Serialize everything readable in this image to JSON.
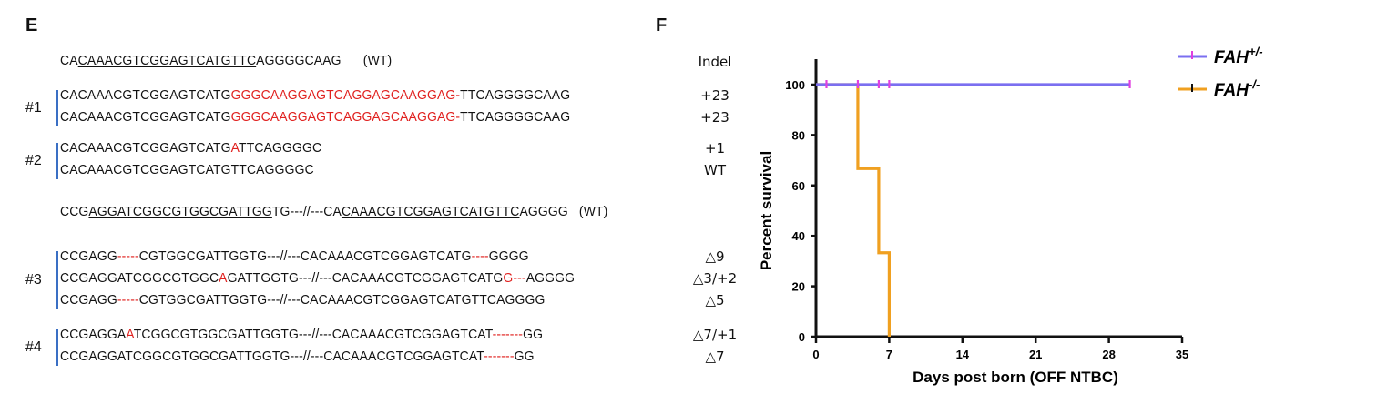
{
  "panels": {
    "left_letter": "E",
    "right_letter": "F"
  },
  "indel_header": "Indel",
  "ref1": [
    {
      "t": "CA",
      "s": ""
    },
    {
      "t": "CAAACGTCGGAGTCATGTTC",
      "s": "u"
    },
    {
      "t": "AGGGGCAAG",
      "s": ""
    },
    {
      "t": "      (WT)",
      "s": ""
    }
  ],
  "ref2": [
    {
      "t": "CCG",
      "s": ""
    },
    {
      "t": "AGGATCGGCGTGGCGATTGG",
      "s": "u"
    },
    {
      "t": "TG---//---CA",
      "s": ""
    },
    {
      "t": "CAAACGTCGGAGTCATGTTC",
      "s": "u"
    },
    {
      "t": "AGGGG   (WT)",
      "s": ""
    }
  ],
  "clones": [
    {
      "label": "#1",
      "rows": [
        {
          "indel": "+23",
          "parts": [
            {
              "t": "CACAAACGTCGGAGTCATG",
              "s": ""
            },
            {
              "t": "GGGCAAGGAGTCAGGAGCAAGGAG-",
              "s": "red"
            },
            {
              "t": "TTCAGGGGCAAG",
              "s": ""
            }
          ]
        },
        {
          "indel": "+23",
          "parts": [
            {
              "t": "CACAAACGTCGGAGTCATG",
              "s": ""
            },
            {
              "t": "GGGCAAGGAGTCAGGAGCAAGGAG-",
              "s": "red"
            },
            {
              "t": "TTCAGGGGCAAG",
              "s": ""
            }
          ]
        }
      ]
    },
    {
      "label": "#2",
      "rows": [
        {
          "indel": "+1",
          "parts": [
            {
              "t": "CACAAACGTCGGAGTCATG",
              "s": ""
            },
            {
              "t": "A",
              "s": "red"
            },
            {
              "t": "TTCAGGGGC",
              "s": ""
            }
          ]
        },
        {
          "indel": "WT",
          "parts": [
            {
              "t": "CACAAACGTCGGAGTCATGTTCAGGGGC",
              "s": ""
            }
          ]
        }
      ]
    },
    {
      "label": "#3",
      "rows": [
        {
          "indel": "△9",
          "parts": [
            {
              "t": "CCGAGG",
              "s": ""
            },
            {
              "t": "-----",
              "s": "red"
            },
            {
              "t": "CGTGGCGATTGGTG---//---CACAAACGTCGGAGTCATG",
              "s": ""
            },
            {
              "t": "----",
              "s": "red"
            },
            {
              "t": "GGGG",
              "s": ""
            }
          ]
        },
        {
          "indel": "△3/+2",
          "parts": [
            {
              "t": "CCGAGGATCGGCGTGGC",
              "s": ""
            },
            {
              "t": "A",
              "s": "red"
            },
            {
              "t": "GATTGGTG---//---CACAAACGTCGGAGTCATG",
              "s": ""
            },
            {
              "t": "G---",
              "s": "red"
            },
            {
              "t": "AGGGG",
              "s": ""
            }
          ]
        },
        {
          "indel": "△5",
          "parts": [
            {
              "t": "CCGAGG",
              "s": ""
            },
            {
              "t": "-----",
              "s": "red"
            },
            {
              "t": "CGTGGCGATTGGTG---//---CACAAACGTCGGAGTCATGTTCAGGGG",
              "s": ""
            }
          ]
        }
      ]
    },
    {
      "label": "#4",
      "rows": [
        {
          "indel": "△7/+1",
          "parts": [
            {
              "t": "CCGAGGA",
              "s": ""
            },
            {
              "t": "A",
              "s": "red"
            },
            {
              "t": "TCGGCGTGGCGATTGGTG---//---CACAAACGTCGGAGTCAT",
              "s": ""
            },
            {
              "t": "-------",
              "s": "red"
            },
            {
              "t": "GG",
              "s": ""
            }
          ]
        },
        {
          "indel": "△7",
          "parts": [
            {
              "t": "CCGAGGATCGGCGTGGCGATTGGTG---//---CACAAACGTCGGAGTCAT",
              "s": ""
            },
            {
              "t": "-------",
              "s": "red"
            },
            {
              "t": "GG",
              "s": ""
            }
          ]
        }
      ]
    }
  ],
  "chart_data": {
    "type": "line",
    "title": "",
    "xlabel": "Days post born (OFF NTBC)",
    "ylabel": "Percent survival",
    "xlim": [
      0,
      35
    ],
    "ylim": [
      0,
      100
    ],
    "xticks": [
      0,
      7,
      14,
      21,
      28,
      35
    ],
    "yticks": [
      0,
      20,
      40,
      60,
      80,
      100
    ],
    "step": true,
    "legend_position": "top-right",
    "series": [
      {
        "name": "FAH+/-",
        "name_base": "FAH",
        "name_sup": "+/-",
        "color": "#7b6ff0",
        "x": [
          0,
          30
        ],
        "y": [
          100,
          100
        ],
        "censor_x": [
          1,
          4,
          6,
          7,
          30
        ],
        "censor_color": "#e040e0"
      },
      {
        "name": "FAH-/-",
        "name_base": "FAH",
        "name_sup": "-/-",
        "color": "#f0a020",
        "x": [
          0,
          4,
          4,
          6,
          6,
          7,
          7
        ],
        "y": [
          100,
          100,
          66.7,
          66.7,
          33.3,
          33.3,
          0
        ],
        "censor_x": [],
        "censor_color": "#111111"
      }
    ]
  }
}
